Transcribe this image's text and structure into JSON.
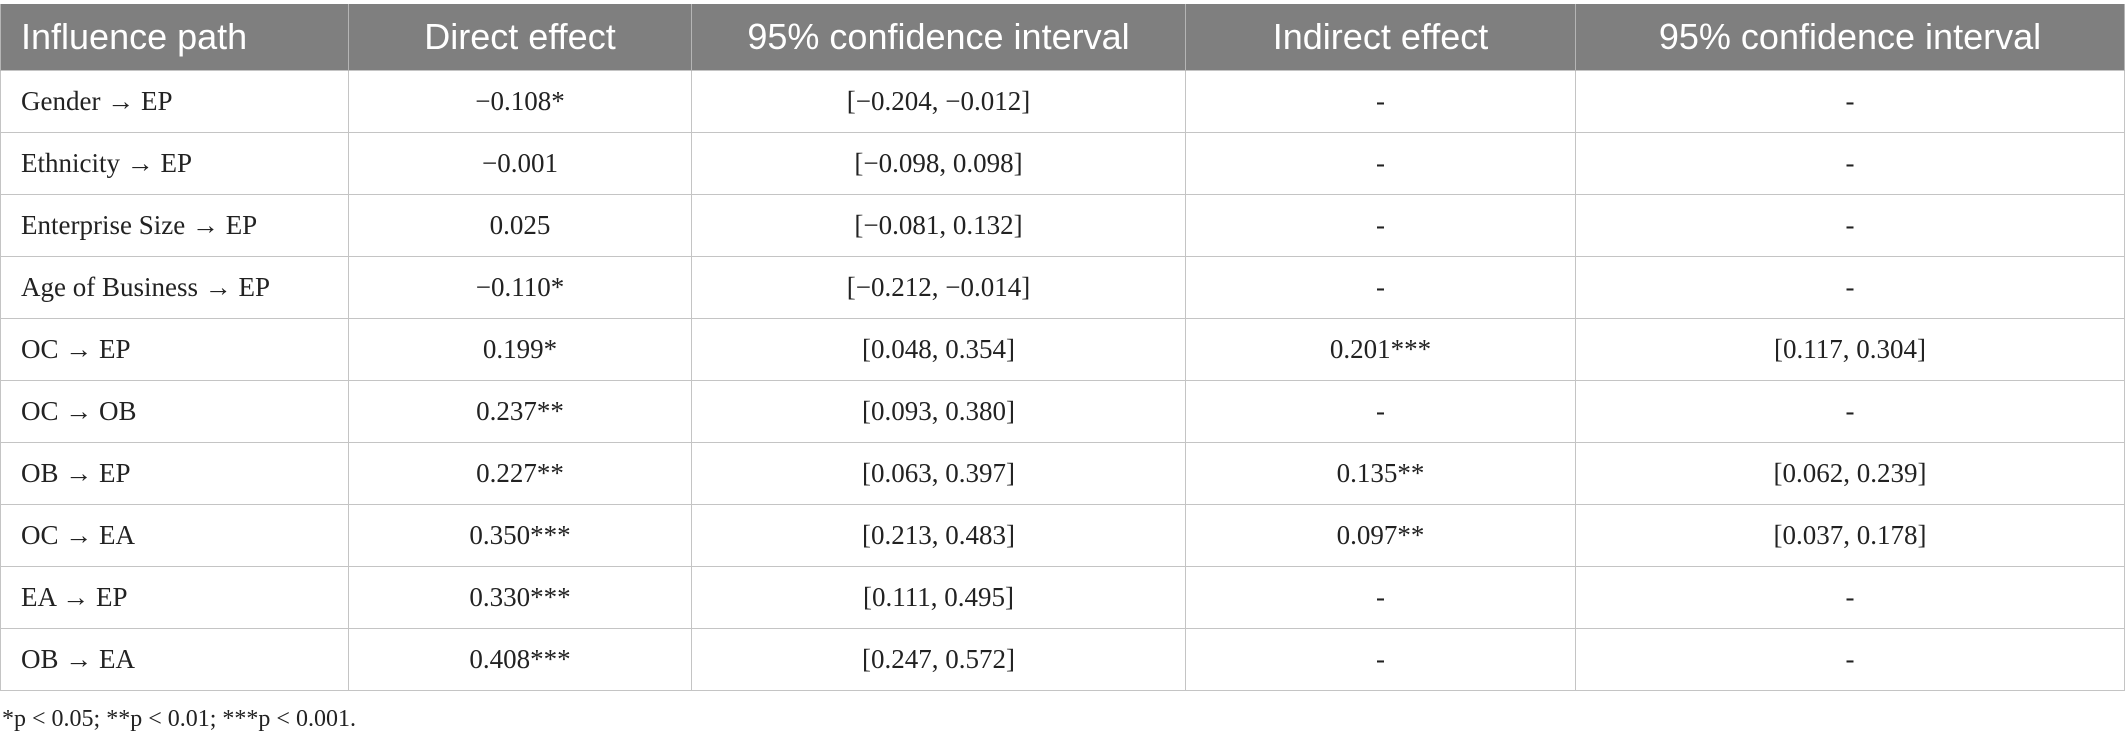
{
  "table": {
    "headers": [
      "Influence path",
      "Direct effect",
      "95% confidence interval",
      "Indirect effect",
      "95% confidence interval"
    ],
    "rows": [
      [
        "Gender → EP",
        "−0.108*",
        "[−0.204, −0.012]",
        "-",
        "-"
      ],
      [
        "Ethnicity → EP",
        "−0.001",
        "[−0.098, 0.098]",
        "-",
        "-"
      ],
      [
        "Enterprise Size → EP",
        "0.025",
        "[−0.081, 0.132]",
        "-",
        "-"
      ],
      [
        "Age of Business → EP",
        "−0.110*",
        "[−0.212, −0.014]",
        "-",
        "-"
      ],
      [
        "OC → EP",
        "0.199*",
        "[0.048, 0.354]",
        "0.201***",
        "[0.117, 0.304]"
      ],
      [
        "OC → OB",
        "0.237**",
        "[0.093, 0.380]",
        "-",
        "-"
      ],
      [
        "OB → EP",
        "0.227**",
        "[0.063, 0.397]",
        "0.135**",
        "[0.062, 0.239]"
      ],
      [
        "OC → EA",
        "0.350***",
        "[0.213, 0.483]",
        "0.097**",
        "[0.037, 0.178]"
      ],
      [
        "EA → EP",
        "0.330***",
        "[0.111, 0.495]",
        "-",
        "-"
      ],
      [
        "OB → EA",
        "0.408***",
        "[0.247, 0.572]",
        "-",
        "-"
      ]
    ]
  },
  "footnote": "*p < 0.05; **p < 0.01; ***p < 0.001.",
  "colors": {
    "header_bg": "#7f7f7f",
    "header_text": "#ffffff",
    "grid": "#c4c4c4"
  }
}
